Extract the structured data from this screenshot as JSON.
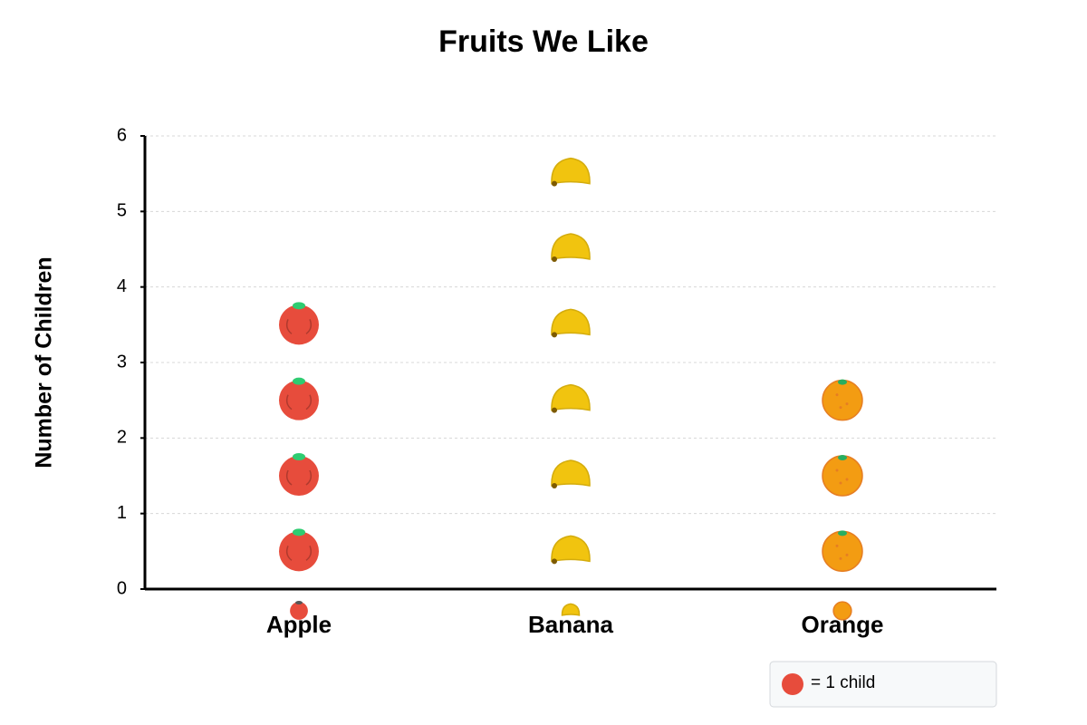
{
  "chart_data": {
    "type": "pictograph",
    "title": "Fruits We Like",
    "y_label": "Number of Children",
    "categories": [
      "Apple",
      "Banana",
      "Orange"
    ],
    "values": [
      4,
      6,
      3
    ],
    "colors": [
      "#e74c3c",
      "#f1c40f",
      "#f39c12"
    ],
    "ylim": [
      0,
      6
    ],
    "yticks": [
      0,
      1,
      2,
      3,
      4,
      5,
      6
    ],
    "grid": true,
    "legend_label": "= 1 child",
    "legend_color": "#e74c3c",
    "legend_position": "bottom-right"
  }
}
